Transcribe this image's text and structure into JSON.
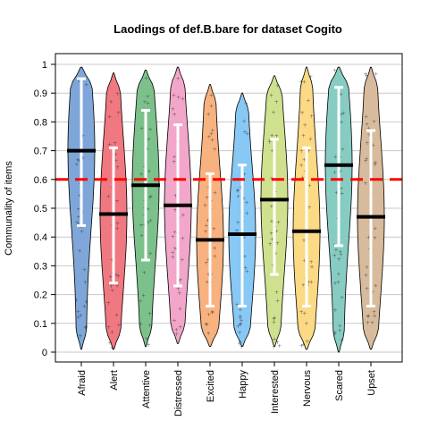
{
  "chart_data": {
    "type": "violin",
    "title": "Laodings of def.B.bare for dataset Cogito",
    "xlabel": "",
    "ylabel": "Communality of items",
    "ylim": [
      0,
      1
    ],
    "yticks": [
      "0",
      "0.1",
      "0.2",
      "0.3",
      "0.4",
      "0.5",
      "0.6",
      "0.7",
      "0.8",
      "0.9",
      "1"
    ],
    "grid": "horizontal",
    "reference_line": {
      "y": 0.6,
      "color": "#ff0000",
      "style": "dashed"
    },
    "categories": [
      "Afraid",
      "Alert",
      "Attentive",
      "Distressed",
      "Excited",
      "Happy",
      "Interested",
      "Nervous",
      "Scared",
      "Upset"
    ],
    "medians": [
      0.7,
      0.48,
      0.58,
      0.51,
      0.39,
      0.41,
      0.53,
      0.42,
      0.65,
      0.47
    ],
    "whisker_low": [
      0.44,
      0.24,
      0.32,
      0.23,
      0.16,
      0.16,
      0.27,
      0.16,
      0.37,
      0.16
    ],
    "whisker_high": [
      0.95,
      0.71,
      0.84,
      0.79,
      0.62,
      0.65,
      0.74,
      0.71,
      0.92,
      0.77
    ],
    "ranges": [
      [
        0.01,
        0.99
      ],
      [
        0.01,
        0.97
      ],
      [
        0.02,
        0.98
      ],
      [
        0.03,
        0.99
      ],
      [
        0.02,
        0.93
      ],
      [
        0.02,
        0.9
      ],
      [
        0.02,
        0.96
      ],
      [
        0.01,
        0.99
      ],
      [
        0.0,
        0.99
      ],
      [
        0.01,
        0.99
      ]
    ],
    "colors": [
      "#7ea6d8",
      "#f07880",
      "#7cc18c",
      "#f2a6c9",
      "#f8b27f",
      "#87c8f4",
      "#cfe08e",
      "#fbd985",
      "#86ccc2",
      "#d7bb9c"
    ]
  }
}
